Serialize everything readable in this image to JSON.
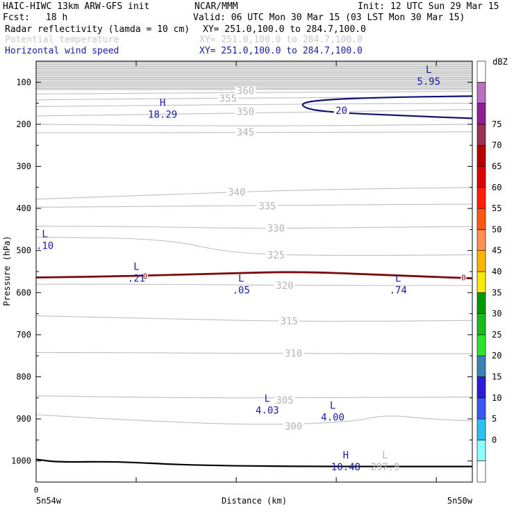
{
  "header": {
    "model": "HAIC-HIWC 13km ARW-GFS init",
    "org": "NCAR/MMM",
    "init": "Init: 12 UTC Sun 29 Mar 15",
    "fcst_label": "Fcst:",
    "fcst_value": "18 h",
    "valid": "Valid: 06 UTC Mon 30 Mar 15 (03 LST Mon 30 Mar 15)",
    "fields": [
      {
        "name": "Radar reflectivity (lamda = 10 cm)",
        "xy": "XY= 251.0,100.0 to 284.7,100.0",
        "color": "#000000"
      },
      {
        "name": "Potential temperature",
        "xy": "XY= 251.0,100.0 to 284.7,100.0",
        "color": "#c8c8c8"
      },
      {
        "name": "Horizontal wind speed",
        "xy": "XY= 251.0,100.0 to 284.7,100.0",
        "color": "#1a1aa0"
      }
    ]
  },
  "chart_data": {
    "type": "cross-section contour",
    "xlabel": "Distance (km)",
    "ylabel": "Pressure (hPa)",
    "x_start_tick": "0",
    "x_left_label": "5n54w",
    "x_right_label": "5n50w",
    "y_ticks": [
      "100",
      "200",
      "300",
      "400",
      "500",
      "600",
      "700",
      "800",
      "900",
      "1000"
    ],
    "y_tick_values": [
      100,
      200,
      300,
      400,
      500,
      600,
      700,
      800,
      900,
      1000
    ],
    "ylim": [
      1050,
      50
    ],
    "xlim": [
      0,
      1
    ],
    "theta_contours": [
      {
        "label": "360",
        "lx": 0.48,
        "lp": 120
      },
      {
        "label": "355",
        "lx": 0.44,
        "lp": 138
      },
      {
        "label": "350",
        "lx": 0.48,
        "lp": 170
      },
      {
        "label": "345",
        "lx": 0.48,
        "lp": 218
      },
      {
        "label": "340",
        "lx": 0.46,
        "lp": 361
      },
      {
        "label": "335",
        "lx": 0.53,
        "lp": 394
      },
      {
        "label": "330",
        "lx": 0.55,
        "lp": 447
      },
      {
        "label": "325",
        "lx": 0.55,
        "lp": 510
      },
      {
        "label": "320",
        "lx": 0.57,
        "lp": 583
      },
      {
        "label": "315",
        "lx": 0.58,
        "lp": 667
      },
      {
        "label": "310",
        "lx": 0.59,
        "lp": 744
      },
      {
        "label": "305",
        "lx": 0.57,
        "lp": 855
      },
      {
        "label": "300",
        "lx": 0.59,
        "lp": 917
      }
    ],
    "theta_extrema": [
      {
        "kind": "L",
        "value": "297.9",
        "x": 0.8,
        "p": 1004
      }
    ],
    "wind_contours": [
      {
        "label": "20",
        "lx": 0.7,
        "lp": 167
      }
    ],
    "wind_extrema": [
      {
        "kind": "L",
        "value": "5.95",
        "x": 0.9,
        "p": 88
      },
      {
        "kind": "H",
        "value": "18.29",
        "x": 0.29,
        "p": 166
      },
      {
        "kind": "L",
        "value": ".10",
        "x": 0.02,
        "p": 478
      },
      {
        "kind": "L",
        "value": ".21",
        "x": 0.23,
        "p": 556
      },
      {
        "kind": "L",
        "value": ".05",
        "x": 0.47,
        "p": 584
      },
      {
        "kind": "L",
        "value": ".74",
        "x": 0.83,
        "p": 584
      },
      {
        "kind": "L",
        "value": "4.03",
        "x": 0.53,
        "p": 869
      },
      {
        "kind": "L",
        "value": "4.00",
        "x": 0.68,
        "p": 886
      },
      {
        "kind": "H",
        "value": "10.48",
        "x": 0.71,
        "p": 1004
      }
    ],
    "reflectivity_contours": [
      {
        "label": "0",
        "lx": 0.25,
        "lp": 561
      },
      {
        "label": "0",
        "lx": 0.98,
        "lp": 564
      }
    ],
    "colorbar": {
      "title": "dBZ",
      "levels": [
        0,
        5,
        10,
        15,
        20,
        25,
        30,
        35,
        40,
        45,
        50,
        55,
        60,
        65,
        70,
        75
      ],
      "colors": [
        "#ffffff",
        "#8cfcfc",
        "#2ec0f4",
        "#3a58f4",
        "#2a1cd8",
        "#3c80b8",
        "#2ce42c",
        "#1aba1a",
        "#009a00",
        "#f8e80c",
        "#ffb400",
        "#ff9050",
        "#ff5810",
        "#ff2000",
        "#e00000",
        "#b80000",
        "#9c3054",
        "#902090",
        "#b870c0",
        "#ffffff"
      ]
    }
  }
}
